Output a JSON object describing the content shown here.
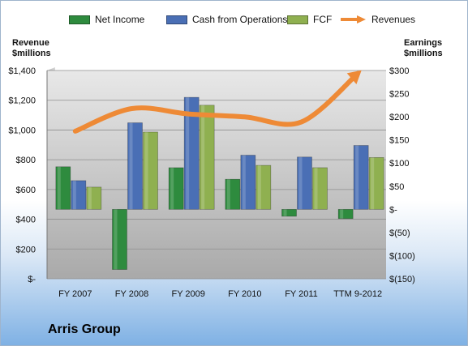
{
  "company": "Arris Group",
  "chart_data": {
    "type": "bar",
    "categories": [
      "FY 2007",
      "FY 2008",
      "FY 2009",
      "FY 2010",
      "FY 2011",
      "TTM 9-2012"
    ],
    "series": [
      {
        "name": "Net Income",
        "axis": "right",
        "color": "#2e8b3e",
        "values": [
          92,
          -130,
          90,
          65,
          -15,
          -20
        ]
      },
      {
        "name": "Cash from Operations",
        "axis": "right",
        "color": "#4a6fb5",
        "values": [
          62,
          187,
          242,
          117,
          113,
          138
        ]
      },
      {
        "name": "FCF",
        "axis": "right",
        "color": "#8fb050",
        "values": [
          48,
          167,
          225,
          95,
          90,
          112
        ]
      },
      {
        "name": "Revenues",
        "axis": "left",
        "type": "line",
        "color": "#ee8a36",
        "values": [
          992,
          1144,
          1108,
          1088,
          1054,
          1380
        ]
      }
    ],
    "left_axis": {
      "label_line1": "Revenue",
      "label_line2": "$millions",
      "min": 0,
      "max": 1400,
      "ticks": [
        0,
        200,
        400,
        600,
        800,
        1000,
        1200,
        1400
      ],
      "tick_labels": [
        "$-",
        "$200",
        "$400",
        "$600",
        "$800",
        "$1,000",
        "$1,200",
        "$1,400"
      ]
    },
    "right_axis": {
      "label_line1": "Earnings",
      "label_line2": "$millions",
      "min": -150,
      "max": 300,
      "ticks": [
        -150,
        -100,
        -50,
        0,
        50,
        100,
        150,
        200,
        250,
        300
      ],
      "tick_labels": [
        "$(150)",
        "$(100)",
        "$(50)",
        "$-",
        "$50",
        "$100",
        "$150",
        "$200",
        "$250",
        "$300"
      ]
    },
    "grid": true,
    "legend": "top"
  }
}
